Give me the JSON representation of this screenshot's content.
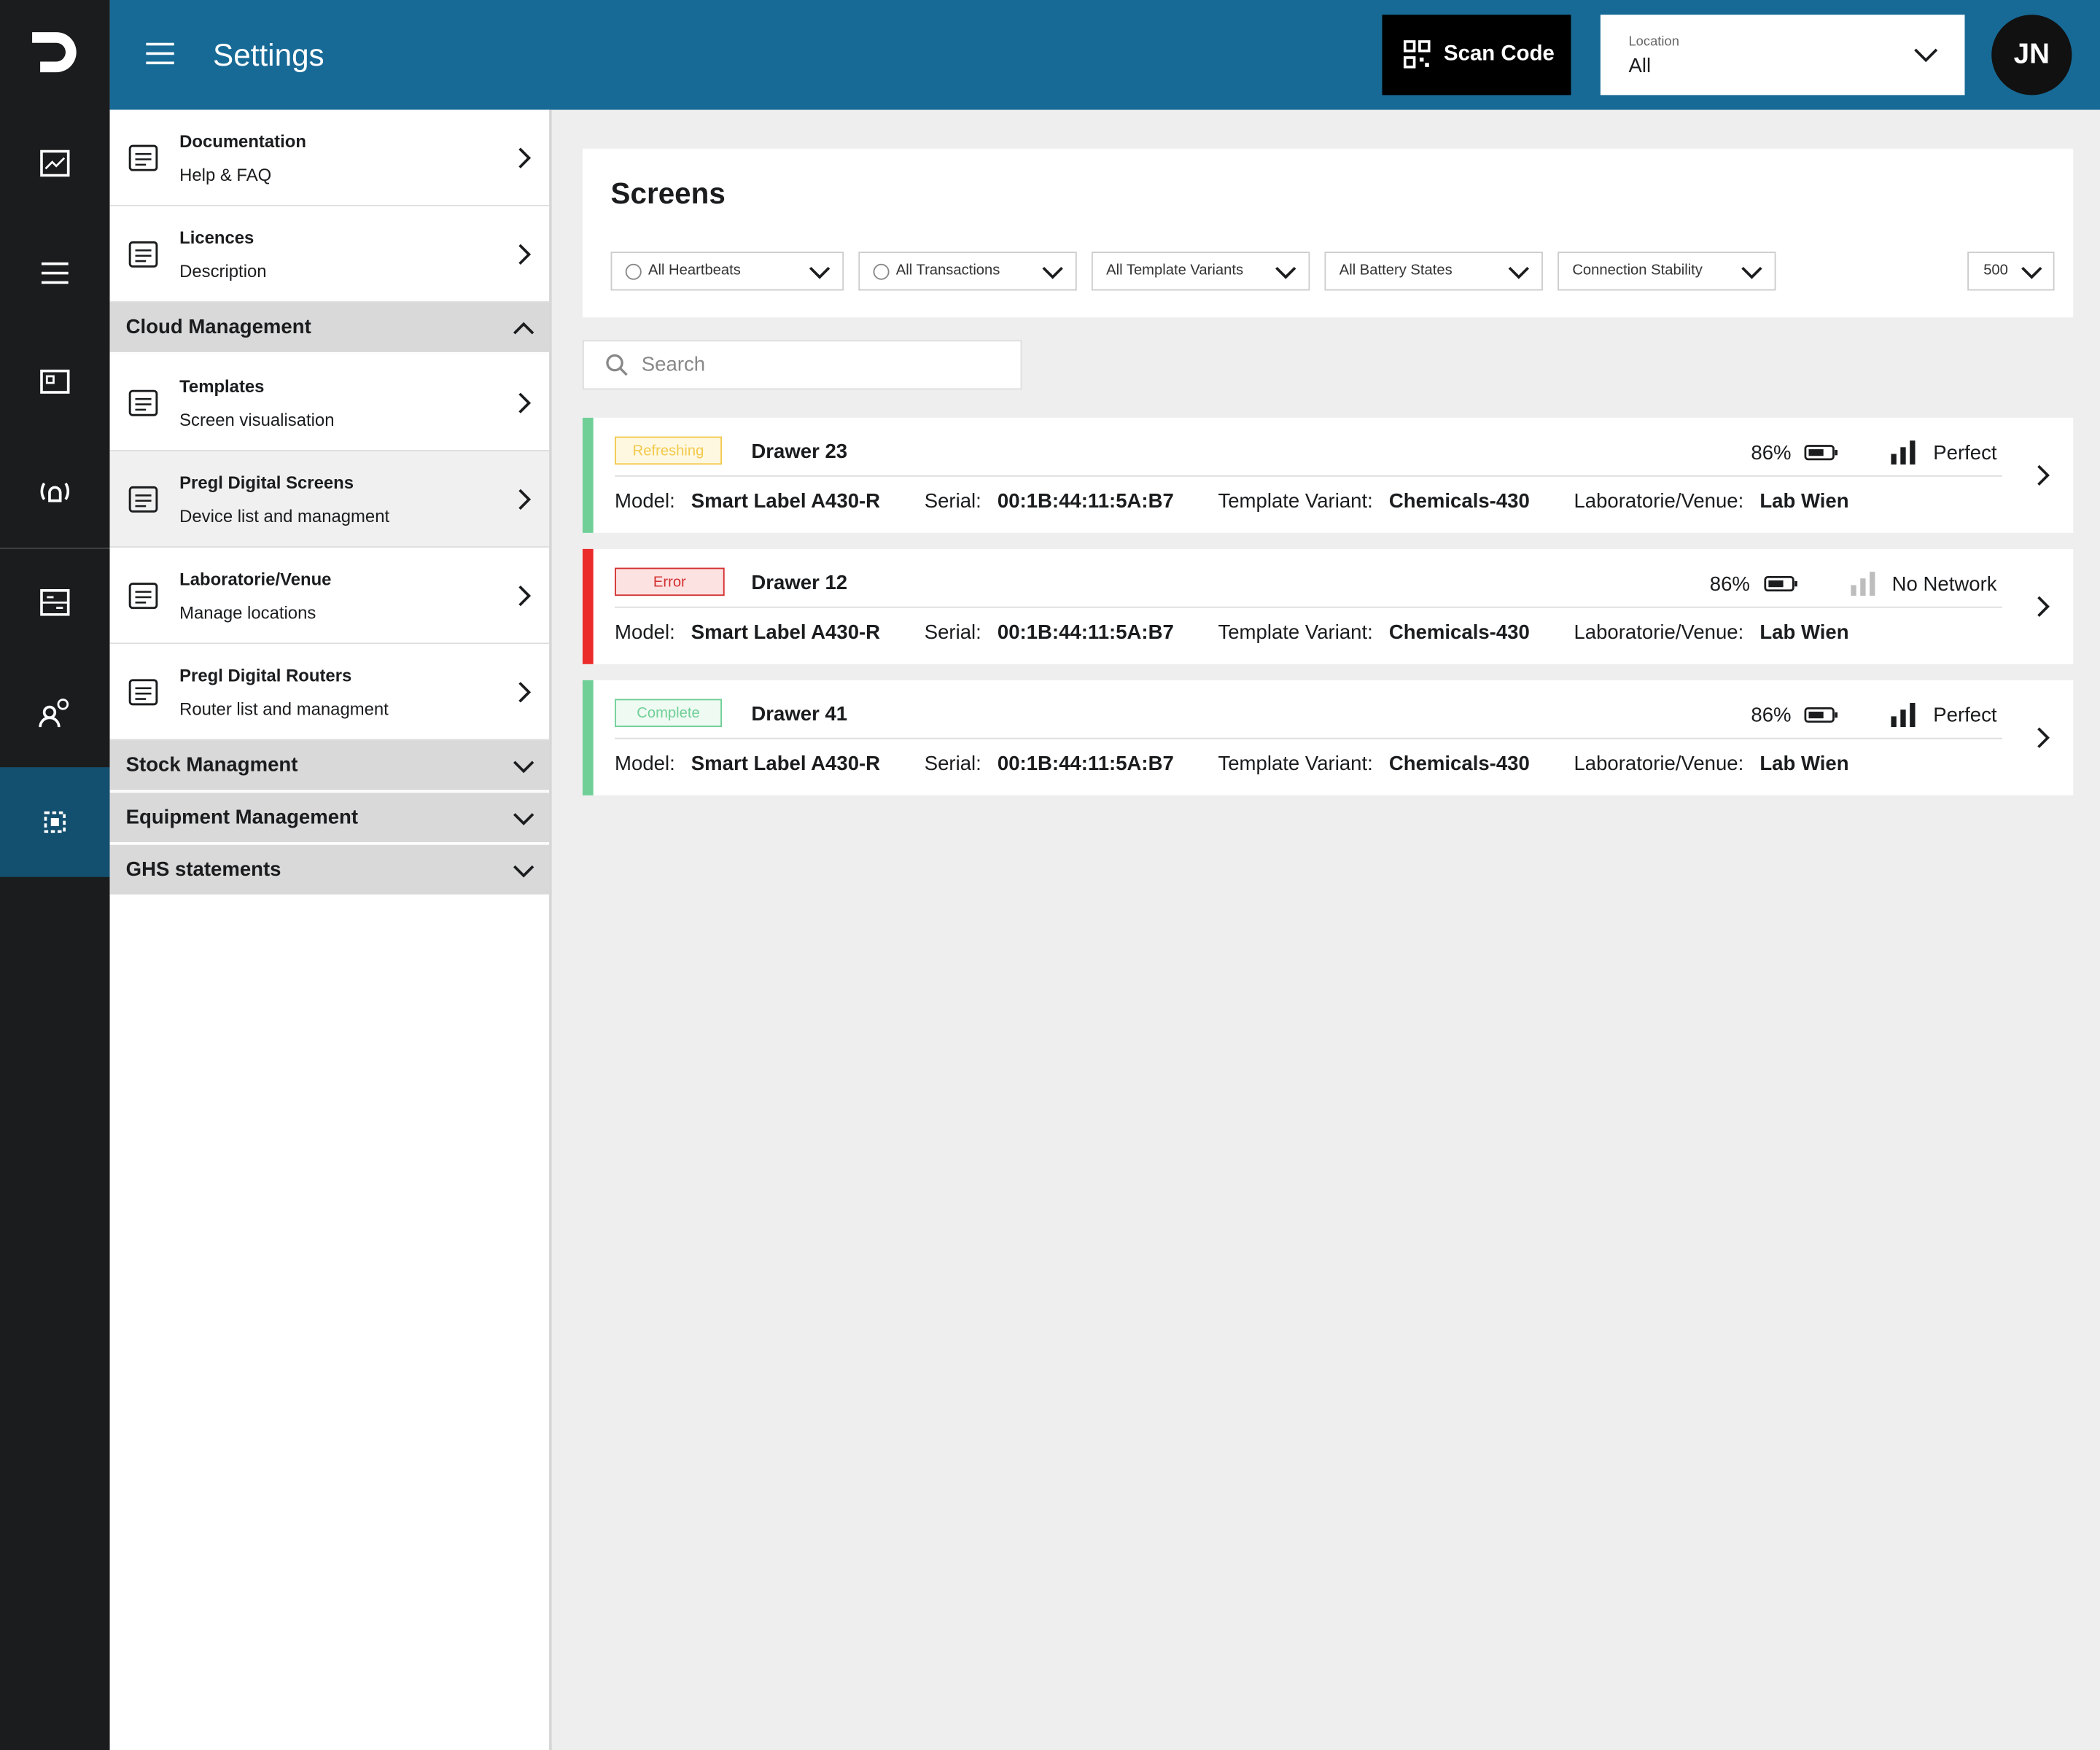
{
  "header": {
    "title": "Settings",
    "scan_button": "Scan Code",
    "location_label": "Location",
    "location_value": "All",
    "avatar": "JN"
  },
  "menu": {
    "items": [
      {
        "title": "Documentation",
        "subtitle": "Help & FAQ"
      },
      {
        "title": "Licences",
        "subtitle": "Description"
      }
    ],
    "sections": [
      {
        "title": "Cloud Management",
        "expanded": true,
        "items": [
          {
            "title": "Templates",
            "subtitle": "Screen visualisation"
          },
          {
            "title": "Pregl Digital Screens",
            "subtitle": "Device list and managment",
            "active": true
          },
          {
            "title": "Laboratorie/Venue",
            "subtitle": "Manage locations"
          },
          {
            "title": "Pregl Digital Routers",
            "subtitle": "Router list and managment"
          }
        ]
      },
      {
        "title": "Stock Managment",
        "expanded": false
      },
      {
        "title": "Equipment Management",
        "expanded": false
      },
      {
        "title": "GHS statements",
        "expanded": false
      }
    ]
  },
  "content": {
    "title": "Screens",
    "filters": [
      {
        "label": "All Heartbeats",
        "radio": true
      },
      {
        "label": "All Transactions",
        "radio": true
      },
      {
        "label": "All Template Variants",
        "radio": false
      },
      {
        "label": "All Battery States",
        "radio": false
      },
      {
        "label": "Connection Stability",
        "radio": false
      }
    ],
    "page_size": "500",
    "search_placeholder": "Search",
    "field_labels": {
      "model": "Model:",
      "serial": "Serial:",
      "template": "Template Variant:",
      "venue": "Laboratorie/Venue:"
    },
    "devices": [
      {
        "status": "Refreshing",
        "color": "#6fcf97",
        "status_color": "#f2c94c",
        "status_bg": "#fff8e1",
        "name": "Drawer 23",
        "battery": "86%",
        "network": "Perfect",
        "network_color": "#1b1c1e",
        "model": "Smart Label A430-R",
        "serial": "00:1B:44:11:5A:B7",
        "template": "Chemicals-430",
        "venue": "Lab Wien"
      },
      {
        "status": "Error",
        "color": "#eb2a2a",
        "status_color": "#d32f2f",
        "status_bg": "#fde2e2",
        "name": "Drawer 12",
        "battery": "86%",
        "network": "No Network",
        "network_color": "#bdbdbd",
        "model": "Smart Label A430-R",
        "serial": "00:1B:44:11:5A:B7",
        "template": "Chemicals-430",
        "venue": "Lab Wien"
      },
      {
        "status": "Complete",
        "color": "#6fcf97",
        "status_color": "#6fcf97",
        "status_bg": "#eefaf2",
        "name": "Drawer 41",
        "battery": "86%",
        "network": "Perfect",
        "network_color": "#1b1c1e",
        "model": "Smart Label A430-R",
        "serial": "00:1B:44:11:5A:B7",
        "template": "Chemicals-430",
        "venue": "Lab Wien"
      }
    ]
  }
}
